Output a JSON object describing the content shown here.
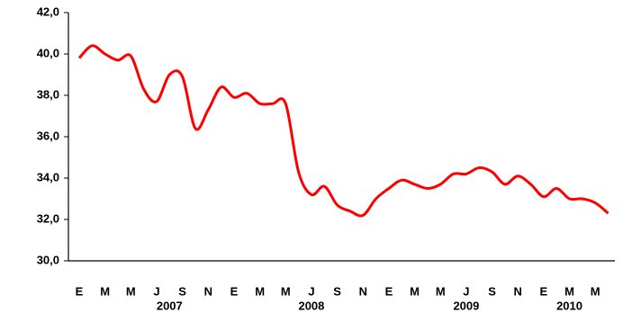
{
  "chart_data": {
    "type": "line",
    "categories": [
      "E",
      null,
      "M",
      null,
      "M",
      null,
      "J",
      null,
      "S",
      null,
      "N",
      null,
      "E",
      null,
      "M",
      null,
      "M",
      null,
      "J",
      null,
      "S",
      null,
      "N",
      null,
      "E",
      null,
      "M",
      null,
      "M",
      null,
      "J",
      null,
      "S",
      null,
      "N",
      null,
      "E",
      null,
      "M",
      null,
      "M",
      null
    ],
    "x_group_labels": [
      null,
      null,
      null,
      null,
      null,
      null,
      null,
      "2007",
      null,
      null,
      null,
      null,
      null,
      null,
      null,
      null,
      null,
      null,
      "2008",
      null,
      null,
      null,
      null,
      null,
      null,
      null,
      null,
      null,
      null,
      null,
      "2009",
      null,
      null,
      null,
      null,
      null,
      null,
      null,
      "2010",
      null,
      null,
      null
    ],
    "series": [
      {
        "color": "#ff0000",
        "values": [
          39.8,
          40.4,
          40.0,
          39.7,
          39.9,
          38.3,
          37.7,
          39.0,
          38.9,
          36.4,
          37.3,
          38.4,
          37.9,
          38.1,
          37.6,
          37.6,
          37.6,
          34.3,
          33.2,
          33.6,
          32.7,
          32.4,
          32.2,
          33.0,
          33.5,
          33.9,
          33.7,
          33.5,
          33.7,
          34.2,
          34.2,
          34.5,
          34.3,
          33.7,
          34.1,
          33.7,
          33.1,
          33.5,
          33.0,
          33.0,
          32.8,
          32.3
        ]
      }
    ],
    "ylim": [
      30,
      42
    ],
    "yticks": [
      {
        "value": 30,
        "label": "30,0"
      },
      {
        "value": 32,
        "label": "32,0"
      },
      {
        "value": 34,
        "label": "34,0"
      },
      {
        "value": 36,
        "label": "36,0"
      },
      {
        "value": 38,
        "label": "38,0"
      },
      {
        "value": 40,
        "label": "40,0"
      },
      {
        "value": 42,
        "label": "42,0"
      }
    ]
  }
}
